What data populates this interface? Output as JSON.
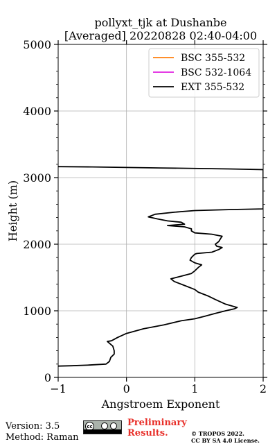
{
  "chart_data": {
    "type": "line",
    "title_line1": "pollyxt_tjk at Dushanbe",
    "title_line2": "[Averaged] 20220828 02:40-04:00",
    "xlabel": "Angstroem Exponent",
    "ylabel": "Height (m)",
    "xlim": [
      -1,
      2
    ],
    "ylim": [
      0,
      5000
    ],
    "xticks": [
      -1,
      0,
      1,
      2
    ],
    "xtick_labels": [
      "−1",
      "0",
      "1",
      "2"
    ],
    "yticks": [
      0,
      1000,
      2000,
      3000,
      4000,
      5000
    ],
    "ytick_labels": [
      "0",
      "1000",
      "2000",
      "3000",
      "4000",
      "5000"
    ],
    "grid": true,
    "legend_position": "top-right",
    "series": [
      {
        "name": "BSC 355-532",
        "color": "#ff7f0e",
        "x": [],
        "y": []
      },
      {
        "name": "BSC 532-1064",
        "color": "#e020e0",
        "x": [],
        "y": []
      },
      {
        "name": "EXT 355-532",
        "color": "#000000",
        "x": [
          -1.0,
          -0.8,
          -0.55,
          -0.3,
          -0.25,
          -0.23,
          -0.18,
          -0.18,
          -0.2,
          -0.28,
          -0.22,
          -0.13,
          0.0,
          0.25,
          0.55,
          0.8,
          1.0,
          1.15,
          1.3,
          1.45,
          1.58,
          1.62,
          1.45,
          1.3,
          1.2,
          1.05,
          1.0,
          0.85,
          0.7,
          0.65,
          0.8,
          0.95,
          1.0,
          1.05,
          1.1,
          1.0,
          0.93,
          0.95,
          1.0,
          1.03,
          1.25,
          1.35,
          1.4,
          1.32,
          1.3,
          1.35,
          1.38,
          1.4,
          1.3,
          1.25,
          1.0,
          0.95,
          0.95,
          0.85,
          0.6,
          0.85,
          0.8,
          0.6,
          0.45,
          0.32,
          0.42,
          0.7,
          1.0,
          1.5,
          2.0,
          2.0,
          1.5,
          0.5,
          -0.5,
          -1.0
        ],
        "y": [
          170,
          175,
          185,
          200,
          240,
          300,
          350,
          400,
          470,
          540,
          550,
          600,
          660,
          730,
          790,
          850,
          880,
          920,
          960,
          1000,
          1030,
          1050,
          1100,
          1170,
          1220,
          1280,
          1320,
          1380,
          1440,
          1480,
          1520,
          1560,
          1600,
          1650,
          1690,
          1720,
          1760,
          1800,
          1850,
          1860,
          1880,
          1920,
          1950,
          1970,
          2000,
          2040,
          2090,
          2120,
          2140,
          2150,
          2170,
          2200,
          2230,
          2260,
          2280,
          2300,
          2330,
          2350,
          2380,
          2410,
          2450,
          2480,
          2505,
          2520,
          2530,
          3120,
          3130,
          3145,
          3160,
          3165
        ]
      }
    ]
  },
  "footer": {
    "version": "Version: 3.5",
    "method": "Method: Raman",
    "preliminary_line1": "Preliminary",
    "preliminary_line2": "Results.",
    "copyright_line1": "© TROPOS 2022.",
    "copyright_line2": "CC BY SA 4.0 License.",
    "license_badge_text": "cc"
  }
}
